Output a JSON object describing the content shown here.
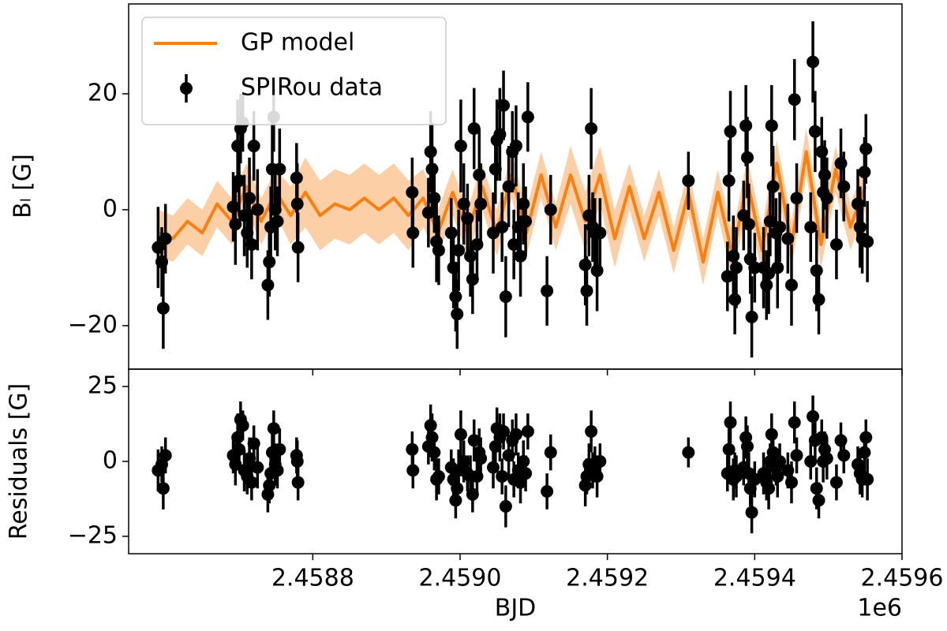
{
  "chart_data": [
    {
      "type": "errorbar",
      "ylabel": "Bₗ [G]",
      "ylim": [
        -27.5,
        35.5
      ],
      "yticks": [
        {
          "value": -20,
          "label": "−20"
        },
        0,
        20
      ],
      "legend": "upper left",
      "series": [
        {
          "name": "GP model",
          "kind": "line",
          "color": "#ff7f0e",
          "band_color": "#fdcfa6",
          "x": [
            2.45859,
            2.45861,
            2.45863,
            2.45865,
            2.45867,
            2.45869,
            2.45871,
            2.45873,
            2.45875,
            2.45877,
            2.45879,
            2.45881,
            2.45883,
            2.45885,
            2.45887,
            2.45889,
            2.45891,
            2.45893,
            2.45895,
            2.45897,
            2.45899,
            2.45901,
            2.45903,
            2.45905,
            2.45907,
            2.45909,
            2.45911,
            2.45913,
            2.45915,
            2.45917,
            2.45919,
            2.45921,
            2.45923,
            2.45925,
            2.45927,
            2.45929,
            2.45931,
            2.45933,
            2.45935,
            2.45937,
            2.45939,
            2.45941,
            2.45943,
            2.45945,
            2.45947,
            2.45949,
            2.45951,
            2.45953,
            2.45955
          ],
          "values": [
            -4,
            -5,
            -2,
            -4,
            1,
            -2,
            4,
            -2,
            3,
            -1,
            3,
            -1,
            1,
            0,
            2,
            0,
            2,
            -1,
            2,
            -4,
            3,
            -4,
            4,
            -4,
            6,
            -4,
            6,
            -3,
            6,
            -2,
            6,
            -5,
            4,
            -5,
            3,
            -7,
            3,
            -9,
            3,
            -8,
            5,
            -7,
            8,
            -6,
            10,
            -6,
            7,
            -3,
            4
          ],
          "errors": [
            4,
            4,
            4,
            4,
            4,
            4,
            4,
            4,
            4,
            5,
            6,
            6,
            6,
            6,
            6,
            6,
            6,
            6,
            5,
            4,
            4,
            4,
            4,
            4,
            4,
            4,
            4,
            4,
            5,
            5,
            5,
            5,
            4,
            4,
            4,
            4,
            4,
            4,
            4,
            4,
            4,
            4,
            4,
            4,
            4,
            4,
            4,
            4,
            4
          ]
        },
        {
          "name": "SPIRou data",
          "kind": "errorbar",
          "color": "#000000",
          "x": [
            2.45859,
            2.458595,
            2.458597,
            2.4586,
            2.458692,
            2.458695,
            2.458698,
            2.4587,
            2.458702,
            2.458705,
            2.458707,
            2.458711,
            2.458714,
            2.458717,
            2.45872,
            2.458725,
            2.458739,
            2.458741,
            2.458743,
            2.458745,
            2.458747,
            2.458749,
            2.458752,
            2.458755,
            2.458778,
            2.458779,
            2.45878,
            2.458935,
            2.458936,
            2.458957,
            2.45896,
            2.458962,
            2.458965,
            2.458968,
            2.458971,
            2.458988,
            2.458991,
            2.458994,
            2.458996,
            2.458998,
            2.459001,
            2.459005,
            2.45901,
            2.459014,
            2.459017,
            2.459019,
            2.459023,
            2.459026,
            2.459028,
            2.459045,
            2.459048,
            2.45905,
            2.459054,
            2.459057,
            2.459059,
            2.459062,
            2.459066,
            2.459071,
            2.459073,
            2.459076,
            2.459079,
            2.459082,
            2.459086,
            2.459089,
            2.459092,
            2.459118,
            2.459123,
            2.45917,
            2.459172,
            2.459175,
            2.459178,
            2.45918,
            2.459183,
            2.459186,
            2.45919,
            2.45931,
            2.459363,
            2.459365,
            2.459367,
            2.459371,
            2.459373,
            2.459375,
            2.459385,
            2.459388,
            2.45939,
            2.459392,
            2.459394,
            2.459396,
            2.4594,
            2.459412,
            2.459416,
            2.459419,
            2.459421,
            2.459423,
            2.459425,
            2.459429,
            2.459431,
            2.459434,
            2.459445,
            2.45945,
            2.459454,
            2.459457,
            2.459476,
            2.459479,
            2.459482,
            2.459484,
            2.459487,
            2.459491,
            2.459493,
            2.459495,
            2.459498,
            2.459511,
            2.459517,
            2.459521,
            2.45954,
            2.459543,
            2.459546,
            2.459549,
            2.459551,
            2.459553
          ],
          "values": [
            -6.5,
            -9,
            -17,
            -5,
            0.5,
            -2.5,
            11,
            5,
            14,
            15,
            -1,
            -4,
            2,
            -6,
            11,
            0,
            -13,
            -9,
            -3,
            7,
            16,
            0,
            -2,
            7,
            5.5,
            1,
            -6.5,
            3,
            -4,
            -0.5,
            10,
            7,
            2,
            -5.5,
            -7,
            -4,
            -10,
            -15,
            -18,
            -7,
            11,
            1,
            -1.5,
            -8,
            -12,
            14,
            -6,
            6,
            1,
            -4,
            7,
            12,
            13,
            -3,
            18,
            -15,
            4,
            10,
            -6,
            11,
            -3,
            -8,
            1,
            -2,
            16,
            -14,
            0,
            -9.5,
            -14,
            -1,
            14,
            -3,
            -4,
            -10.5,
            -4,
            5,
            -11.5,
            5,
            13.5,
            -8,
            -15.5,
            -10,
            -1,
            14.5,
            9,
            -2.5,
            -8.5,
            -18.5,
            -10,
            -10,
            -13,
            -11,
            -2,
            14.5,
            4,
            -4,
            -10,
            -3,
            -5,
            -13,
            19,
            2,
            -3,
            25.5,
            13.5,
            -10.5,
            -15.5,
            10,
            3,
            6,
            2,
            -6,
            8,
            4,
            1,
            -3,
            -5,
            6.5,
            10.5,
            -5.5
          ],
          "errors": [
            7,
            6,
            7,
            6,
            6,
            7,
            8,
            6,
            6,
            5,
            7,
            6,
            7,
            6,
            6,
            7,
            6,
            6,
            7,
            8,
            6,
            7,
            6,
            7,
            6,
            7,
            6,
            6,
            6,
            6,
            7,
            8,
            6,
            7,
            6,
            6,
            7,
            6,
            6,
            7,
            8,
            7,
            6,
            7,
            6,
            7,
            6,
            8,
            7,
            7,
            6,
            7,
            8,
            6,
            6,
            7,
            7,
            7,
            6,
            7,
            6,
            7,
            7,
            6,
            6,
            6,
            6,
            7,
            6,
            7,
            7,
            6,
            6,
            7,
            6,
            5,
            6,
            7,
            7,
            7,
            6,
            7,
            6,
            7,
            7,
            7,
            6,
            7,
            6,
            7,
            6,
            7,
            6,
            7,
            7,
            6,
            7,
            6,
            6,
            7,
            7,
            6,
            6,
            7,
            7,
            7,
            6,
            6,
            7,
            6,
            7,
            6,
            6,
            6,
            6,
            7,
            6,
            6,
            6,
            7
          ]
        }
      ]
    },
    {
      "type": "errorbar",
      "ylabel": "Residuals [G]",
      "xlabel": "BJD",
      "x_offset_label": "1e6",
      "xlim": [
        2.45855,
        2.4596
      ],
      "xticks": [
        2.4588,
        {
          "value": 2.459,
          "label": "2.4590"
        },
        2.4592,
        2.4594,
        2.4596
      ],
      "ylim": [
        -30.8,
        30.8
      ],
      "yticks": [
        {
          "value": -25,
          "label": "−25"
        },
        0,
        25
      ],
      "series": [
        {
          "kind": "errorbar",
          "color": "#000000",
          "x": [
            2.45859,
            2.458595,
            2.458597,
            2.4586,
            2.458692,
            2.458695,
            2.458698,
            2.4587,
            2.458702,
            2.458705,
            2.458707,
            2.458711,
            2.458714,
            2.458717,
            2.45872,
            2.458725,
            2.458739,
            2.458741,
            2.458743,
            2.458745,
            2.458747,
            2.458749,
            2.458752,
            2.458755,
            2.458778,
            2.458779,
            2.45878,
            2.458935,
            2.458936,
            2.458957,
            2.45896,
            2.458962,
            2.458965,
            2.458968,
            2.458971,
            2.458988,
            2.458991,
            2.458994,
            2.458996,
            2.458998,
            2.459001,
            2.459005,
            2.45901,
            2.459014,
            2.459017,
            2.459019,
            2.459023,
            2.459026,
            2.459028,
            2.459045,
            2.459048,
            2.45905,
            2.459054,
            2.459057,
            2.459059,
            2.459062,
            2.459066,
            2.459071,
            2.459073,
            2.459076,
            2.459079,
            2.459082,
            2.459086,
            2.459089,
            2.459092,
            2.459118,
            2.459123,
            2.45917,
            2.459172,
            2.459175,
            2.459178,
            2.45918,
            2.459183,
            2.459186,
            2.45919,
            2.45931,
            2.459363,
            2.459365,
            2.459367,
            2.459371,
            2.459373,
            2.459375,
            2.459385,
            2.459388,
            2.45939,
            2.459392,
            2.459394,
            2.459396,
            2.4594,
            2.459412,
            2.459416,
            2.459419,
            2.459421,
            2.459423,
            2.459425,
            2.459429,
            2.459431,
            2.459434,
            2.459445,
            2.45945,
            2.459454,
            2.459457,
            2.459476,
            2.459479,
            2.459482,
            2.459484,
            2.459487,
            2.459491,
            2.459493,
            2.459495,
            2.459498,
            2.459511,
            2.459517,
            2.459521,
            2.45954,
            2.459543,
            2.459546,
            2.459549,
            2.459551,
            2.459553
          ],
          "values": [
            -3,
            -1,
            -9,
            2,
            2,
            -1,
            8,
            4,
            14,
            12,
            -3,
            -5,
            1,
            -7,
            6,
            -2,
            -11,
            -8,
            -4,
            3,
            11,
            -1,
            -3,
            4,
            2,
            0,
            -7,
            4,
            -3,
            5,
            12,
            8,
            3,
            -6,
            -5,
            -2,
            -6,
            -13,
            -9,
            -3,
            9,
            0,
            -4,
            -5,
            -11,
            7,
            -5,
            3,
            1,
            -2,
            5,
            11,
            8,
            -5,
            10,
            -15,
            2,
            7,
            -6,
            9,
            -3,
            -7,
            0,
            -4,
            10,
            -10,
            3,
            -8,
            -5,
            -1,
            10,
            -3,
            -1,
            -5,
            0,
            3,
            -4,
            4,
            13,
            -6,
            -3,
            -5,
            -2,
            8,
            5,
            -4,
            -9,
            -17,
            -6,
            -4,
            -7,
            -9,
            0,
            9,
            3,
            -2,
            -5,
            0,
            -3,
            -7,
            13,
            2,
            0,
            15,
            7,
            -9,
            -13,
            8,
            0,
            4,
            1,
            -7,
            7,
            2,
            -1,
            -4,
            -6,
            3,
            8,
            -6
          ],
          "errors": [
            7,
            6,
            7,
            6,
            6,
            7,
            8,
            6,
            6,
            5,
            7,
            6,
            7,
            6,
            6,
            7,
            6,
            6,
            7,
            8,
            6,
            7,
            6,
            7,
            6,
            7,
            6,
            6,
            6,
            6,
            7,
            8,
            6,
            7,
            6,
            6,
            7,
            6,
            6,
            7,
            8,
            7,
            6,
            7,
            6,
            7,
            6,
            8,
            7,
            7,
            6,
            7,
            8,
            6,
            6,
            7,
            7,
            7,
            6,
            7,
            6,
            7,
            7,
            6,
            6,
            6,
            6,
            7,
            6,
            7,
            7,
            6,
            6,
            7,
            6,
            5,
            6,
            7,
            7,
            7,
            6,
            7,
            6,
            7,
            7,
            7,
            6,
            7,
            6,
            7,
            6,
            7,
            6,
            7,
            7,
            6,
            7,
            6,
            6,
            7,
            7,
            6,
            6,
            7,
            7,
            7,
            6,
            6,
            7,
            6,
            7,
            6,
            6,
            6,
            6,
            7,
            6,
            6,
            6,
            7
          ]
        }
      ]
    }
  ]
}
